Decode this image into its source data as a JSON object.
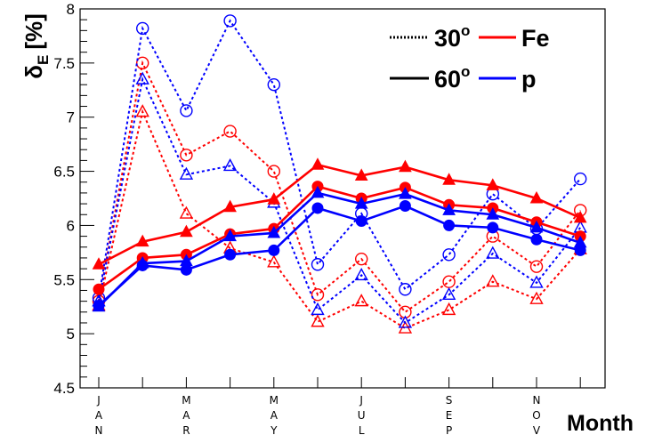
{
  "chart_data": {
    "type": "line",
    "ylabel": "δE [%]",
    "ylabel_main": "δ",
    "ylabel_sub": "E",
    "ylabel_unit": "[%]",
    "xlabel": "Month",
    "ylim": [
      4.5,
      8
    ],
    "yticks": [
      "4.5",
      "5",
      "5.5",
      "6",
      "6.5",
      "7",
      "7.5",
      "8"
    ],
    "month_labels": [
      {
        "index": 0,
        "letters": [
          "J",
          "A",
          "N"
        ]
      },
      {
        "index": 2,
        "letters": [
          "M",
          "A",
          "R"
        ]
      },
      {
        "index": 4,
        "letters": [
          "M",
          "A",
          "Y"
        ]
      },
      {
        "index": 6,
        "letters": [
          "J",
          "U",
          "L"
        ]
      },
      {
        "index": 8,
        "letters": [
          "S",
          "E",
          "P"
        ]
      },
      {
        "index": 10,
        "letters": [
          "N",
          "O",
          "V"
        ]
      }
    ],
    "x": [
      1,
      2,
      3,
      4,
      5,
      6,
      7,
      8,
      9,
      10,
      11,
      12
    ],
    "series": [
      {
        "name": "Fe 30° open triangle",
        "primary": "Fe",
        "angle": "30°",
        "color": "#ff0000",
        "dash": "dotted",
        "marker": "open-triangle",
        "values": [
          5.26,
          7.05,
          6.11,
          5.79,
          5.66,
          5.11,
          5.3,
          5.05,
          5.22,
          5.48,
          5.32,
          5.78
        ]
      },
      {
        "name": "Fe 30° open circle",
        "primary": "Fe",
        "angle": "30°",
        "color": "#ff0000",
        "dash": "dotted",
        "marker": "open-circle",
        "values": [
          5.3,
          7.5,
          6.65,
          6.87,
          6.5,
          5.36,
          5.69,
          5.2,
          5.48,
          5.9,
          5.62,
          6.14
        ]
      },
      {
        "name": "p 30° open triangle",
        "primary": "p",
        "angle": "30°",
        "color": "#0000ff",
        "dash": "dotted",
        "marker": "open-triangle",
        "values": [
          5.3,
          7.35,
          6.47,
          6.55,
          6.21,
          5.22,
          5.54,
          5.1,
          5.36,
          5.74,
          5.47,
          5.98
        ]
      },
      {
        "name": "p 30° open circle",
        "primary": "p",
        "angle": "30°",
        "color": "#0000ff",
        "dash": "dotted",
        "marker": "open-circle",
        "values": [
          5.33,
          7.82,
          7.06,
          7.89,
          7.3,
          5.64,
          6.11,
          5.41,
          5.73,
          6.29,
          5.97,
          6.43
        ]
      },
      {
        "name": "Fe 60° filled triangle",
        "primary": "Fe",
        "angle": "60°",
        "color": "#ff0000",
        "dash": "solid",
        "marker": "filled-triangle",
        "values": [
          5.64,
          5.85,
          5.94,
          6.17,
          6.24,
          6.56,
          6.46,
          6.54,
          6.42,
          6.37,
          6.25,
          6.07
        ]
      },
      {
        "name": "Fe 60° filled circle",
        "primary": "Fe",
        "angle": "60°",
        "color": "#ff0000",
        "dash": "solid",
        "marker": "filled-circle",
        "values": [
          5.41,
          5.7,
          5.73,
          5.92,
          5.97,
          6.36,
          6.25,
          6.35,
          6.19,
          6.16,
          6.03,
          5.9
        ]
      },
      {
        "name": "p 60° filled triangle",
        "primary": "p",
        "angle": "60°",
        "color": "#0000ff",
        "dash": "solid",
        "marker": "filled-triangle",
        "values": [
          5.25,
          5.65,
          5.67,
          5.9,
          5.93,
          6.3,
          6.2,
          6.29,
          6.14,
          6.1,
          5.98,
          5.84
        ]
      },
      {
        "name": "p 60° filled circle",
        "primary": "p",
        "angle": "60°",
        "color": "#0000ff",
        "dash": "solid",
        "marker": "filled-circle",
        "values": [
          5.26,
          5.63,
          5.59,
          5.73,
          5.77,
          6.16,
          6.04,
          6.18,
          6.0,
          5.98,
          5.87,
          5.77
        ]
      }
    ],
    "legend": {
      "placement": "top-right",
      "entries": [
        {
          "label": "30",
          "suffix": "o",
          "line": "dotted",
          "color": "#000000"
        },
        {
          "label": "Fe",
          "line": "solid",
          "color": "#ff0000"
        },
        {
          "label": "60",
          "suffix": "o",
          "line": "solid",
          "color": "#000000"
        },
        {
          "label": "p",
          "line": "solid",
          "color": "#0000ff"
        }
      ]
    }
  }
}
